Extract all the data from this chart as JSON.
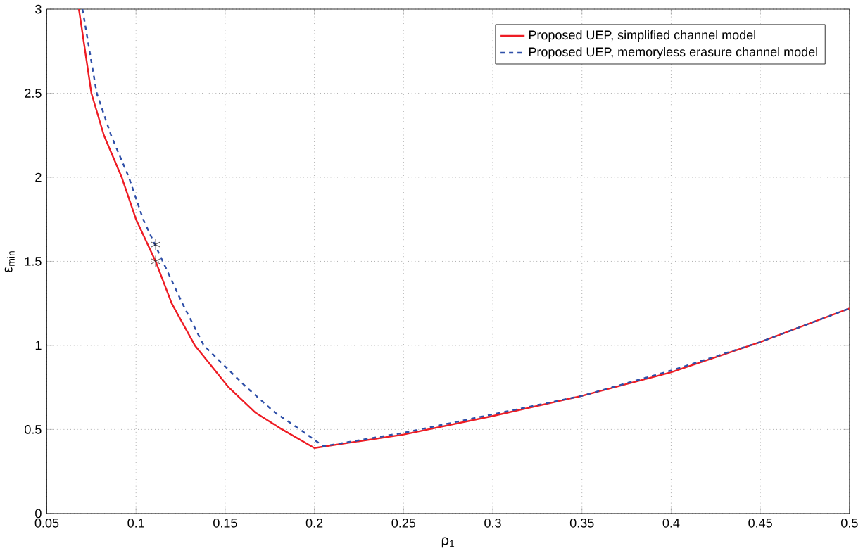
{
  "chart_data": {
    "type": "line",
    "xlabel": "ρ$_{1}$",
    "ylabel": "ε$_{min}$",
    "xlim": [
      0.05,
      0.5
    ],
    "ylim": [
      0,
      3
    ],
    "xticks": [
      0.05,
      0.1,
      0.15,
      0.2,
      0.25,
      0.3,
      0.35,
      0.4,
      0.45,
      0.5
    ],
    "yticks": [
      0,
      0.5,
      1,
      1.5,
      2,
      2.5,
      3
    ],
    "grid": true,
    "legend": "top right",
    "series": [
      {
        "name": "Proposed UEP, simplified channel model",
        "color": "#ee1c24",
        "line_style": "solid",
        "x": [
          0.068,
          0.075,
          0.082,
          0.092,
          0.1,
          0.111,
          0.12,
          0.133,
          0.152,
          0.167,
          0.182,
          0.2,
          0.25,
          0.3,
          0.35,
          0.4,
          0.45,
          0.5
        ],
        "values": [
          3.0,
          2.5,
          2.25,
          2.0,
          1.75,
          1.5,
          1.25,
          1.0,
          0.75,
          0.6,
          0.5,
          0.39,
          0.47,
          0.58,
          0.7,
          0.84,
          1.02,
          1.22
        ]
      },
      {
        "name": "Proposed UEP, memoryless erasure channel model",
        "color": "#2e4fa8",
        "line_style": "dashed",
        "x": [
          0.07,
          0.078,
          0.086,
          0.096,
          0.104,
          0.115,
          0.126,
          0.138,
          0.162,
          0.178,
          0.192,
          0.205,
          0.25,
          0.3,
          0.35,
          0.4,
          0.45,
          0.5
        ],
        "values": [
          3.0,
          2.5,
          2.25,
          2.0,
          1.75,
          1.5,
          1.25,
          1.0,
          0.75,
          0.6,
          0.5,
          0.4,
          0.48,
          0.59,
          0.7,
          0.85,
          1.02,
          1.22
        ]
      },
      {
        "type": "scatter",
        "marker": "cross",
        "color": "#222222",
        "x": [
          0.111,
          0.111
        ],
        "values": [
          1.6,
          1.5
        ]
      }
    ]
  }
}
